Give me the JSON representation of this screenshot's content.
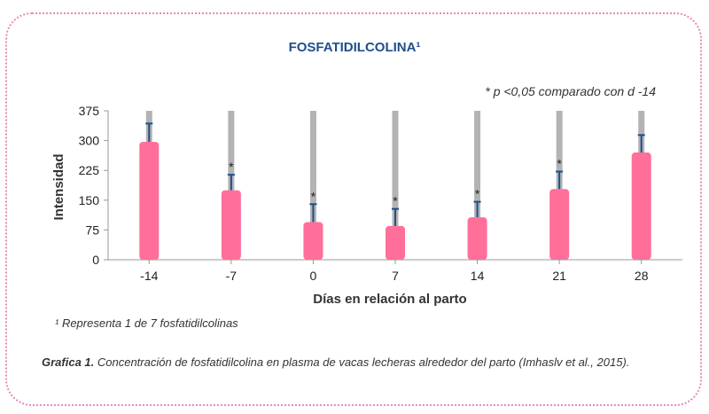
{
  "chart_data": {
    "type": "bar",
    "title": "FOSFATIDILCOLINA¹",
    "annotation": "* p <0,05 comparado con d -14",
    "xlabel": "Días en relación al parto",
    "ylabel": "Intensidad",
    "ylim": [
      0,
      375
    ],
    "yticks": [
      "0",
      "75",
      "150",
      "225",
      "300",
      "375"
    ],
    "categories": [
      "-14",
      "-7",
      "0",
      "7",
      "14",
      "21",
      "28"
    ],
    "series": [
      {
        "values": [
          297,
          175,
          95,
          85,
          107,
          178,
          270
        ],
        "error_upper": [
          343,
          214,
          140,
          128,
          146,
          222,
          314
        ],
        "range_max": [
          375,
          375,
          375,
          375,
          375,
          375,
          375
        ],
        "significant": [
          false,
          true,
          true,
          true,
          true,
          true,
          false
        ]
      }
    ],
    "colors": {
      "bar": "#ff6f99",
      "range": "#b3b3b3",
      "error": "#1f4e8c"
    }
  },
  "footnote": "¹ Representa 1 de 7 fosfatidilcolinas",
  "caption": {
    "label": "Grafica 1.",
    "text": " Concentración de fosfatidilcolina en plasma de vacas lecheras alrededor del parto (Imhaslv et al., 2015)."
  },
  "significance_marker": "*"
}
